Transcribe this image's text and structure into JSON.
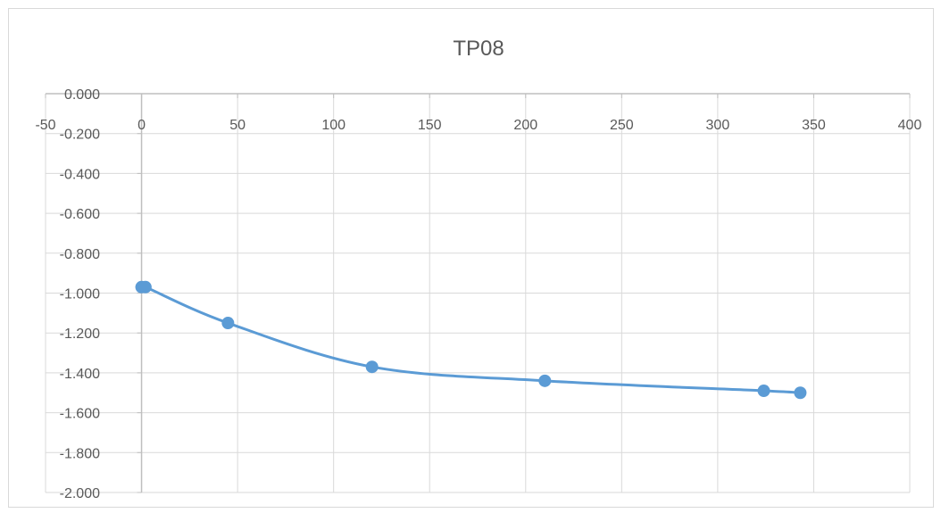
{
  "chart_data": {
    "type": "scatter",
    "title": "TP08",
    "xlabel": "",
    "ylabel": "",
    "xlim": [
      -50,
      400
    ],
    "ylim": [
      -2.0,
      0.0
    ],
    "x_ticks": [
      -50,
      0,
      50,
      100,
      150,
      200,
      250,
      300,
      350,
      400
    ],
    "y_ticks": [
      0.0,
      -0.2,
      -0.4,
      -0.6,
      -0.8,
      -1.0,
      -1.2,
      -1.4,
      -1.6,
      -1.8,
      -2.0
    ],
    "y_tick_labels": [
      "0.000",
      "-0.200",
      "-0.400",
      "-0.600",
      "-0.800",
      "-1.000",
      "-1.200",
      "-1.400",
      "-1.600",
      "-1.800",
      "-2.000"
    ],
    "x_tick_labels": [
      "-50",
      "0",
      "50",
      "100",
      "150",
      "200",
      "250",
      "300",
      "350",
      "400"
    ],
    "grid": true,
    "smooth_line": true,
    "series": [
      {
        "color": "#5b9bd5",
        "points": [
          {
            "x": 0,
            "y": -0.97
          },
          {
            "x": 2,
            "y": -0.97
          },
          {
            "x": 45,
            "y": -1.15
          },
          {
            "x": 120,
            "y": -1.37
          },
          {
            "x": 210,
            "y": -1.44
          },
          {
            "x": 324,
            "y": -1.49
          },
          {
            "x": 343,
            "y": -1.5
          }
        ]
      }
    ],
    "colors": {
      "grid": "#d9d9d9",
      "axis": "#bfbfbf",
      "text": "#595959"
    }
  }
}
